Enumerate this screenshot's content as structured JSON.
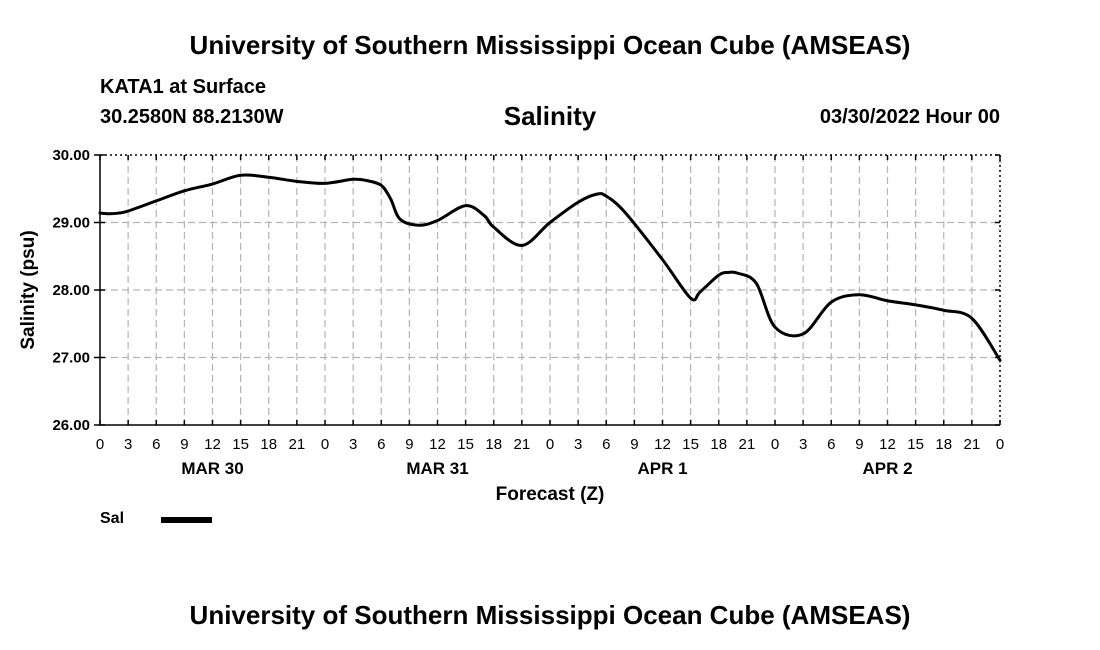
{
  "header": {
    "title": "University of Southern Mississippi Ocean Cube (AMSEAS)",
    "station": "KATA1 at Surface",
    "coords": "30.2580N  88.2130W",
    "datetime": "03/30/2022 Hour 00"
  },
  "footer": {
    "title": "University of Southern Mississippi Ocean Cube (AMSEAS)"
  },
  "legend": {
    "entries": [
      {
        "label": "Sal",
        "color": "#000000"
      }
    ]
  },
  "chart_data": {
    "type": "line",
    "title": "Salinity",
    "xlabel": "Forecast (Z)",
    "ylabel": "Salinity (psu)",
    "ylim": [
      26.0,
      30.0
    ],
    "yticks": [
      "26.00",
      "27.00",
      "28.00",
      "29.00",
      "30.00"
    ],
    "xlim": [
      0,
      96
    ],
    "xtick_step_hours": 3,
    "xtick_labels": [
      "0",
      "3",
      "6",
      "9",
      "12",
      "15",
      "18",
      "21",
      "0",
      "3",
      "6",
      "9",
      "12",
      "15",
      "18",
      "21",
      "0",
      "3",
      "6",
      "9",
      "12",
      "15",
      "18",
      "21",
      "0",
      "3",
      "6",
      "9",
      "12",
      "15",
      "18",
      "21",
      "0"
    ],
    "day_labels": [
      {
        "label": "MAR 30",
        "hour": 12
      },
      {
        "label": "MAR 31",
        "hour": 36
      },
      {
        "label": "APR 1",
        "hour": 60
      },
      {
        "label": "APR 2",
        "hour": 84
      }
    ],
    "grid": true,
    "series": [
      {
        "name": "Sal",
        "color": "#000000",
        "x": [
          0,
          1,
          2,
          3,
          6,
          9,
          12,
          15,
          18,
          21,
          24,
          27,
          28.5,
          30,
          31,
          32,
          34,
          36,
          39,
          41,
          42,
          45,
          48,
          51,
          53,
          54,
          56,
          60,
          63,
          64,
          66,
          67,
          68,
          70,
          72,
          75,
          78,
          81,
          84,
          87,
          90,
          93,
          96
        ],
        "y": [
          29.14,
          29.13,
          29.14,
          29.17,
          29.32,
          29.47,
          29.57,
          29.7,
          29.67,
          29.61,
          29.58,
          29.64,
          29.62,
          29.55,
          29.35,
          29.05,
          28.96,
          29.03,
          29.25,
          29.1,
          28.93,
          28.66,
          29.0,
          29.3,
          29.42,
          29.39,
          29.15,
          28.45,
          27.88,
          27.97,
          28.22,
          28.26,
          28.25,
          28.1,
          27.45,
          27.35,
          27.82,
          27.93,
          27.84,
          27.78,
          27.7,
          27.58,
          26.96
        ]
      }
    ]
  }
}
